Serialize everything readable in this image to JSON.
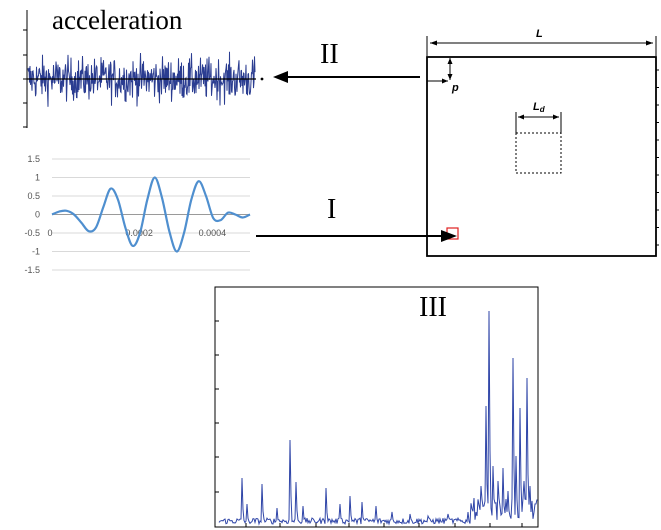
{
  "title": "acceleration",
  "labels": {
    "path_I": "I",
    "path_II": "II",
    "panel_III": "III",
    "dim_L": "L",
    "dim_Ld": "L",
    "dim_Ld_sub": "d",
    "dim_p": "p"
  },
  "colors": {
    "signal": "#2b3d91",
    "pulse": "#4f8fcf",
    "spectrum": "#3046a8",
    "marker": "#e02020",
    "line": "#000000",
    "grid": "#d9d9d9"
  },
  "pulse_chart": {
    "type": "line",
    "yticks": [
      "1.5",
      "1",
      "0.5",
      "0",
      "-0.5",
      "-1",
      "-1.5"
    ],
    "xticks": [
      "0",
      "0.0002",
      "0.0004"
    ],
    "ylim": [
      -1.5,
      1.5
    ],
    "xlim": [
      0,
      0.00054
    ],
    "grid": true,
    "x": [
      0,
      2e-05,
      4e-05,
      6e-05,
      8e-05,
      0.0001,
      0.00012,
      0.00014,
      0.00016,
      0.00018,
      0.0002,
      0.00022,
      0.00024,
      0.00026,
      0.00028,
      0.0003,
      0.00032,
      0.00034,
      0.00036,
      0.00038,
      0.0004,
      0.00042,
      0.00044,
      0.00046,
      0.00048,
      0.0005,
      0.00052,
      0.00054
    ],
    "y": [
      0.0,
      0.08,
      0.1,
      0.0,
      -0.22,
      -0.45,
      -0.35,
      0.2,
      0.7,
      0.4,
      -0.35,
      -0.85,
      -0.5,
      0.4,
      1.0,
      0.45,
      -0.45,
      -1.0,
      -0.5,
      0.4,
      0.9,
      0.5,
      -0.1,
      -0.15,
      0.05,
      0.0,
      -0.08,
      0.0
    ]
  }
}
